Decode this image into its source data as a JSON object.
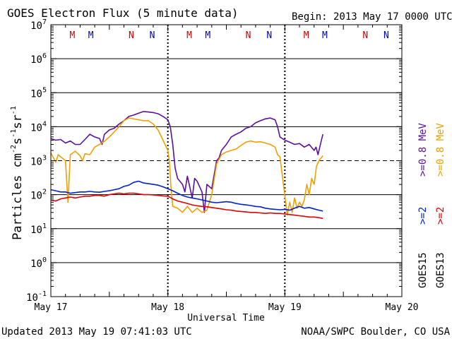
{
  "chart_data": {
    "type": "line",
    "title": "GOES Electron Flux (5 minute data)",
    "begin_label": "Begin: 2013 May 17 0000 UTC",
    "xlabel": "Universal Time",
    "ylabel_main": "Particles cm",
    "ylabel_exp1": "-2",
    "ylabel_s": "s",
    "ylabel_exp2": "-1",
    "ylabel_sr": "sr",
    "ylabel_exp3": "-1",
    "yscale": "log",
    "ylim_exp": [
      -1,
      7
    ],
    "y_ticks": [
      {
        "base": "10",
        "exp": "7"
      },
      {
        "base": "10",
        "exp": "6"
      },
      {
        "base": "10",
        "exp": "5"
      },
      {
        "base": "10",
        "exp": "4"
      },
      {
        "base": "10",
        "exp": "3"
      },
      {
        "base": "10",
        "exp": "2"
      },
      {
        "base": "10",
        "exp": "1"
      },
      {
        "base": "10",
        "exp": "0"
      },
      {
        "base": "10",
        "exp": "-1"
      }
    ],
    "xlim_hours": [
      0,
      72
    ],
    "x_ticks": [
      {
        "hour": 0,
        "label": "May 17"
      },
      {
        "hour": 24,
        "label": "May 18"
      },
      {
        "hour": 48,
        "label": "May 19"
      },
      {
        "hour": 72,
        "label": "May 20"
      }
    ],
    "threshold_flux": 1000,
    "footer_left": "Updated 2013 May 19 07:41:03 UTC",
    "footer_right": "NOAA/SWPC Boulder, CO USA",
    "legend_goes15": {
      "sat": "GOES15",
      "low": ">=2",
      "high": ">=0.8 MeV"
    },
    "legend_goes13": {
      "sat": "GOES13",
      "low": ">=2",
      "high": ">=0.8 MeV"
    },
    "markers": [
      {
        "hour": 4.4,
        "text": "M",
        "color": "#d00000"
      },
      {
        "hour": 8.2,
        "text": "M",
        "color": "#0000cc"
      },
      {
        "hour": 16.5,
        "text": "N",
        "color": "#d00000"
      },
      {
        "hour": 20.8,
        "text": "N",
        "color": "#0000cc"
      },
      {
        "hour": 28.4,
        "text": "M",
        "color": "#d00000"
      },
      {
        "hour": 32.2,
        "text": "M",
        "color": "#0000cc"
      },
      {
        "hour": 40.5,
        "text": "N",
        "color": "#d00000"
      },
      {
        "hour": 44.8,
        "text": "N",
        "color": "#0000cc"
      },
      {
        "hour": 52.4,
        "text": "M",
        "color": "#d00000"
      },
      {
        "hour": 56.2,
        "text": "M",
        "color": "#0000cc"
      },
      {
        "hour": 64.5,
        "text": "N",
        "color": "#d00000"
      },
      {
        "hour": 68.8,
        "text": "N",
        "color": "#0000cc"
      }
    ],
    "series": [
      {
        "name": "GOES15 >=0.8 MeV",
        "color": "#5b0f9c",
        "points": [
          [
            0,
            4500
          ],
          [
            1,
            4000
          ],
          [
            2,
            4200
          ],
          [
            3,
            3300
          ],
          [
            4,
            3800
          ],
          [
            5,
            3000
          ],
          [
            6,
            3000
          ],
          [
            7,
            4200
          ],
          [
            8,
            6000
          ],
          [
            9,
            5000
          ],
          [
            10,
            4500
          ],
          [
            10.5,
            3000
          ],
          [
            11,
            6000
          ],
          [
            12,
            8000
          ],
          [
            13,
            9000
          ],
          [
            14,
            12000
          ],
          [
            15,
            15000
          ],
          [
            16,
            20000
          ],
          [
            17,
            22000
          ],
          [
            18,
            25000
          ],
          [
            19,
            28000
          ],
          [
            20,
            27000
          ],
          [
            21,
            26000
          ],
          [
            22,
            24000
          ],
          [
            23,
            20000
          ],
          [
            24,
            16000
          ],
          [
            24.5,
            10000
          ],
          [
            25,
            3000
          ],
          [
            25.5,
            600
          ],
          [
            26,
            300
          ],
          [
            27,
            200
          ],
          [
            27.5,
            120
          ],
          [
            28,
            350
          ],
          [
            29,
            80
          ],
          [
            29.5,
            300
          ],
          [
            30,
            250
          ],
          [
            31,
            120
          ],
          [
            31.5,
            30
          ],
          [
            32,
            200
          ],
          [
            33,
            150
          ],
          [
            34,
            1000
          ],
          [
            34.5,
            1200
          ],
          [
            35,
            2000
          ],
          [
            36,
            3000
          ],
          [
            37,
            5000
          ],
          [
            38,
            6000
          ],
          [
            39,
            7000
          ],
          [
            40,
            9000
          ],
          [
            41,
            10000
          ],
          [
            42,
            13000
          ],
          [
            43,
            15000
          ],
          [
            44,
            17000
          ],
          [
            45,
            18000
          ],
          [
            46,
            16000
          ],
          [
            46.5,
            10000
          ],
          [
            47,
            5000
          ],
          [
            48,
            4000
          ],
          [
            49,
            3500
          ],
          [
            50,
            3000
          ],
          [
            51,
            3200
          ],
          [
            52,
            2500
          ],
          [
            53,
            3000
          ],
          [
            54,
            2000
          ],
          [
            54.4,
            2500
          ],
          [
            54.8,
            1500
          ],
          [
            55.5,
            4000
          ],
          [
            55.8,
            6000
          ]
        ]
      },
      {
        "name": "GOES13 >=0.8 MeV",
        "color": "#f0a000",
        "points": [
          [
            0,
            1700
          ],
          [
            1,
            900
          ],
          [
            1.5,
            1500
          ],
          [
            2,
            1300
          ],
          [
            3,
            1000
          ],
          [
            3.5,
            60
          ],
          [
            4,
            1500
          ],
          [
            5,
            1900
          ],
          [
            6,
            1400
          ],
          [
            6.5,
            1000
          ],
          [
            7,
            1600
          ],
          [
            8,
            1500
          ],
          [
            9,
            2500
          ],
          [
            10,
            3000
          ],
          [
            11,
            3700
          ],
          [
            12,
            5000
          ],
          [
            13,
            7000
          ],
          [
            14,
            10000
          ],
          [
            15,
            15000
          ],
          [
            16,
            18000
          ],
          [
            17,
            17000
          ],
          [
            18,
            16000
          ],
          [
            19,
            15000
          ],
          [
            20,
            15000
          ],
          [
            21,
            12000
          ],
          [
            22,
            8000
          ],
          [
            23,
            4000
          ],
          [
            24,
            2000
          ],
          [
            24.3,
            1000
          ],
          [
            24.6,
            200
          ],
          [
            25,
            45
          ],
          [
            26,
            40
          ],
          [
            27,
            30
          ],
          [
            28,
            45
          ],
          [
            29,
            30
          ],
          [
            30,
            40
          ],
          [
            31,
            30
          ],
          [
            32,
            35
          ],
          [
            33,
            100
          ],
          [
            34,
            800
          ],
          [
            35,
            1500
          ],
          [
            36,
            1800
          ],
          [
            37,
            2000
          ],
          [
            38,
            2200
          ],
          [
            39,
            2800
          ],
          [
            40,
            3500
          ],
          [
            41,
            3800
          ],
          [
            42,
            3500
          ],
          [
            43,
            3600
          ],
          [
            44,
            3300
          ],
          [
            45,
            3000
          ],
          [
            46,
            2500
          ],
          [
            46.5,
            1500
          ],
          [
            47,
            1300
          ],
          [
            48.5,
            25
          ],
          [
            49,
            60
          ],
          [
            49.5,
            30
          ],
          [
            50,
            80
          ],
          [
            50.5,
            40
          ],
          [
            51,
            60
          ],
          [
            51.5,
            45
          ],
          [
            52,
            70
          ],
          [
            52.5,
            200
          ],
          [
            53,
            100
          ],
          [
            53.5,
            300
          ],
          [
            54,
            200
          ],
          [
            54.5,
            700
          ],
          [
            55,
            1000
          ],
          [
            55.8,
            1400
          ]
        ]
      },
      {
        "name": "GOES15 >=2 MeV",
        "color": "#0022cc",
        "points": [
          [
            0,
            140
          ],
          [
            1,
            130
          ],
          [
            2,
            120
          ],
          [
            3,
            120
          ],
          [
            4,
            110
          ],
          [
            5,
            115
          ],
          [
            6,
            120
          ],
          [
            7,
            120
          ],
          [
            8,
            125
          ],
          [
            9,
            120
          ],
          [
            10,
            118
          ],
          [
            11,
            125
          ],
          [
            12,
            130
          ],
          [
            13,
            140
          ],
          [
            14,
            150
          ],
          [
            15,
            175
          ],
          [
            16,
            190
          ],
          [
            17,
            230
          ],
          [
            18,
            250
          ],
          [
            19,
            220
          ],
          [
            20,
            210
          ],
          [
            21,
            200
          ],
          [
            22,
            190
          ],
          [
            23,
            170
          ],
          [
            24,
            150
          ],
          [
            25,
            130
          ],
          [
            26,
            110
          ],
          [
            27,
            95
          ],
          [
            28,
            85
          ],
          [
            29,
            80
          ],
          [
            30,
            75
          ],
          [
            31,
            70
          ],
          [
            32,
            65
          ],
          [
            33,
            60
          ],
          [
            34,
            58
          ],
          [
            35,
            60
          ],
          [
            36,
            62
          ],
          [
            37,
            60
          ],
          [
            38,
            55
          ],
          [
            39,
            52
          ],
          [
            40,
            50
          ],
          [
            41,
            48
          ],
          [
            42,
            45
          ],
          [
            43,
            44
          ],
          [
            44,
            40
          ],
          [
            45,
            38
          ],
          [
            46,
            37
          ],
          [
            47,
            36
          ],
          [
            48,
            37
          ],
          [
            49,
            35
          ],
          [
            50,
            40
          ],
          [
            51,
            45
          ],
          [
            52,
            40
          ],
          [
            53,
            42
          ],
          [
            54,
            38
          ],
          [
            55,
            35
          ],
          [
            55.8,
            33
          ]
        ]
      },
      {
        "name": "GOES13 >=2 MeV",
        "color": "#e00000",
        "points": [
          [
            0,
            70
          ],
          [
            1,
            65
          ],
          [
            2,
            75
          ],
          [
            3,
            80
          ],
          [
            4,
            85
          ],
          [
            5,
            80
          ],
          [
            6,
            85
          ],
          [
            7,
            90
          ],
          [
            8,
            90
          ],
          [
            9,
            95
          ],
          [
            10,
            95
          ],
          [
            11,
            90
          ],
          [
            12,
            100
          ],
          [
            13,
            105
          ],
          [
            14,
            110
          ],
          [
            15,
            105
          ],
          [
            16,
            110
          ],
          [
            17,
            110
          ],
          [
            18,
            105
          ],
          [
            19,
            100
          ],
          [
            20,
            100
          ],
          [
            21,
            98
          ],
          [
            22,
            95
          ],
          [
            23,
            92
          ],
          [
            24,
            90
          ],
          [
            25,
            75
          ],
          [
            26,
            65
          ],
          [
            27,
            60
          ],
          [
            28,
            55
          ],
          [
            29,
            50
          ],
          [
            30,
            47
          ],
          [
            31,
            45
          ],
          [
            32,
            44
          ],
          [
            33,
            42
          ],
          [
            34,
            40
          ],
          [
            35,
            38
          ],
          [
            36,
            36
          ],
          [
            37,
            35
          ],
          [
            38,
            33
          ],
          [
            39,
            32
          ],
          [
            40,
            31
          ],
          [
            41,
            30
          ],
          [
            42,
            30
          ],
          [
            43,
            29
          ],
          [
            44,
            28
          ],
          [
            45,
            29
          ],
          [
            46,
            28
          ],
          [
            47,
            28
          ],
          [
            48,
            27
          ],
          [
            49,
            26
          ],
          [
            50,
            25
          ],
          [
            51,
            24
          ],
          [
            52,
            23
          ],
          [
            53,
            22
          ],
          [
            54,
            22
          ],
          [
            55,
            21
          ],
          [
            55.8,
            20
          ]
        ]
      }
    ]
  }
}
